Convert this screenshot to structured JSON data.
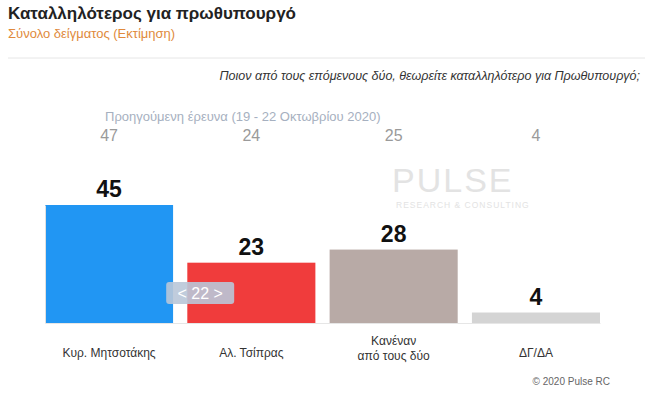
{
  "chart_data": {
    "type": "bar",
    "title": "Καταλληλότερος για πρωθυπουργό",
    "subtitle": "Σύνολο δείγματος (Εκτίμηση)",
    "question": "Ποιον από τους επόμενους δύο, θεωρείτε καταλληλότερο για Πρωθυπουργό;",
    "categories": [
      "Κυρ. Μητσοτάκης",
      "Αλ. Τσίπρας",
      "Κανέναν από τους δύο",
      "ΔΓ/ΔΑ"
    ],
    "values": [
      45,
      23,
      28,
      4
    ],
    "colors": [
      "#2196f3",
      "#f03c3c",
      "#b8aaa6",
      "#d4d4d4"
    ],
    "previous_label": "Προηγούμενη έρευνα (19 - 22 Οκτωβρίου 2020)",
    "previous_values": [
      47,
      24,
      25,
      4
    ],
    "annotations": [
      {
        "text": "< 22 >"
      }
    ],
    "watermark": [
      "PULSE",
      "RESEARCH & CONSULTING"
    ],
    "source": "© 2020 Pulse RC",
    "ylim": [
      0,
      45
    ],
    "yticks": [],
    "data_labels": true,
    "tick_labels": false,
    "grid": false
  }
}
